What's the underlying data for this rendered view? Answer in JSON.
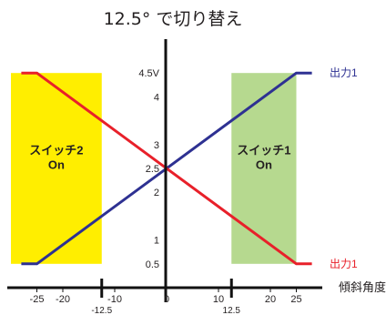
{
  "chart_data": {
    "type": "line",
    "title": "12.5° で切り替え",
    "xlabel": "傾斜角度",
    "ylabel": "",
    "xlim": [
      -30,
      30
    ],
    "ylim": [
      0,
      5
    ],
    "grid": false,
    "x_ticks": [
      {
        "value": -25,
        "label": "-25"
      },
      {
        "value": -20,
        "label": "-20"
      },
      {
        "value": -10,
        "label": "-10"
      },
      {
        "value": 0,
        "label": "0"
      },
      {
        "value": 10,
        "label": "10"
      },
      {
        "value": 20,
        "label": "20"
      },
      {
        "value": 25,
        "label": "25"
      }
    ],
    "x_marks": [
      {
        "value": -12.5,
        "label": "-12.5"
      },
      {
        "value": 12.5,
        "label": "12.5"
      }
    ],
    "y_ticks": [
      {
        "value": 0.5,
        "label": "0.5"
      },
      {
        "value": 1,
        "label": "1"
      },
      {
        "value": 2,
        "label": "2"
      },
      {
        "value": 2.5,
        "label": "2.5"
      },
      {
        "value": 3,
        "label": "3"
      },
      {
        "value": 4,
        "label": "4"
      },
      {
        "value": 4.5,
        "label": "4.5V"
      }
    ],
    "series": [
      {
        "name": "出力1",
        "color": "#2e3192",
        "x": [
          -28,
          -25,
          25,
          28
        ],
        "y": [
          0.5,
          0.5,
          4.5,
          4.5
        ]
      },
      {
        "name": "出力1",
        "color": "#e8202a",
        "x": [
          -28,
          -25,
          25,
          28
        ],
        "y": [
          4.5,
          4.5,
          0.5,
          0.5
        ]
      }
    ],
    "regions": [
      {
        "label": [
          "スイッチ2",
          "On"
        ],
        "x_range": [
          -30,
          -12.5
        ],
        "y_range": [
          0.5,
          4.5
        ],
        "color": "#ffee00"
      },
      {
        "label": [
          "スイッチ1",
          "On"
        ],
        "x_range": [
          12.5,
          25
        ],
        "y_range": [
          0.5,
          4.5
        ],
        "color": "#b6d98f"
      }
    ]
  }
}
